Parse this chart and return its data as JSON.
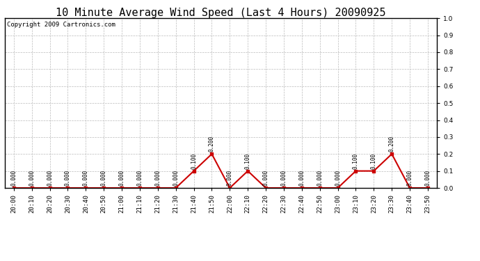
{
  "title": "10 Minute Average Wind Speed (Last 4 Hours) 20090925",
  "copyright": "Copyright 2009 Cartronics.com",
  "x_labels": [
    "20:00",
    "20:10",
    "20:20",
    "20:30",
    "20:40",
    "20:50",
    "21:00",
    "21:10",
    "21:20",
    "21:30",
    "21:40",
    "21:50",
    "22:00",
    "22:10",
    "22:20",
    "22:30",
    "22:40",
    "22:50",
    "23:00",
    "23:10",
    "23:20",
    "23:30",
    "23:40",
    "23:50"
  ],
  "y_values": [
    0.0,
    0.0,
    0.0,
    0.0,
    0.0,
    0.0,
    0.0,
    0.0,
    0.0,
    0.0,
    0.1,
    0.2,
    0.0,
    0.1,
    0.0,
    0.0,
    0.0,
    0.0,
    0.0,
    0.1,
    0.1,
    0.2,
    0.0,
    0.0
  ],
  "line_color": "#cc0000",
  "marker_color": "#cc0000",
  "background_color": "#ffffff",
  "grid_color": "#bbbbbb",
  "ylim": [
    0.0,
    1.0
  ],
  "yticks": [
    0.0,
    0.1,
    0.2,
    0.3,
    0.4,
    0.5,
    0.6,
    0.7,
    0.8,
    0.9,
    1.0
  ],
  "title_fontsize": 11,
  "copyright_fontsize": 6.5,
  "label_fontsize": 5.5,
  "tick_fontsize": 6.5
}
